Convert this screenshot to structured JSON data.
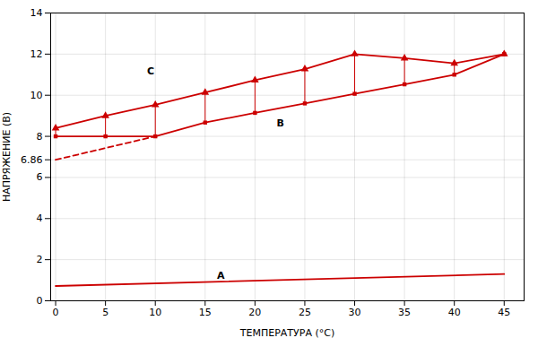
{
  "chart_data": {
    "type": "line",
    "xlabel": "ТЕМПЕРАТУРА (°C)",
    "ylabel": "НАПРЯЖЕНИЕ (В)",
    "xlim": [
      -0.5,
      47
    ],
    "ylim": [
      0,
      14
    ],
    "xticks": [
      0,
      5,
      10,
      15,
      20,
      25,
      30,
      35,
      40,
      45
    ],
    "yticks": [
      0,
      2,
      4,
      6,
      6.86,
      8,
      10,
      12,
      14
    ],
    "grid": true,
    "series": [
      {
        "name": "A",
        "x": [
          0,
          45
        ],
        "values": [
          0.72,
          1.3
        ],
        "color": "#cc0000",
        "marker": "none",
        "line_style": "solid"
      },
      {
        "name": "B",
        "x": [
          0,
          5,
          10,
          15,
          20,
          25,
          30,
          35,
          40,
          45
        ],
        "values": [
          8.0,
          8.0,
          8.0,
          8.67,
          9.14,
          9.6,
          10.07,
          10.53,
          11.0,
          12.0
        ],
        "color": "#cc0000",
        "marker": "square",
        "line_style": "solid"
      },
      {
        "name": "C",
        "x": [
          0,
          5,
          10,
          15,
          20,
          25,
          30,
          35,
          40,
          45
        ],
        "values": [
          8.4,
          9.0,
          9.53,
          10.13,
          10.73,
          11.27,
          12.0,
          11.8,
          11.55,
          12.0
        ],
        "color": "#cc0000",
        "marker": "triangle",
        "line_style": "solid"
      },
      {
        "x": [
          0,
          10
        ],
        "values": [
          6.86,
          8.0
        ],
        "color": "#cc0000",
        "marker": "none",
        "line_style": "dashed"
      }
    ],
    "connectors": {
      "x": [
        0,
        5,
        10,
        15,
        20,
        25,
        30,
        35,
        40
      ],
      "y1": [
        8.0,
        8.0,
        8.0,
        8.67,
        9.14,
        9.6,
        10.07,
        10.53,
        11.0
      ],
      "y2": [
        8.4,
        9.0,
        9.53,
        10.13,
        10.73,
        11.27,
        12.0,
        11.8,
        11.55
      ],
      "color": "#cc0000"
    },
    "annotations": [
      {
        "text": "A",
        "x": 16,
        "y": 1.08
      },
      {
        "text": "B",
        "x": 22,
        "y": 8.5
      },
      {
        "text": "C",
        "x": 9,
        "y": 11.0
      }
    ]
  }
}
